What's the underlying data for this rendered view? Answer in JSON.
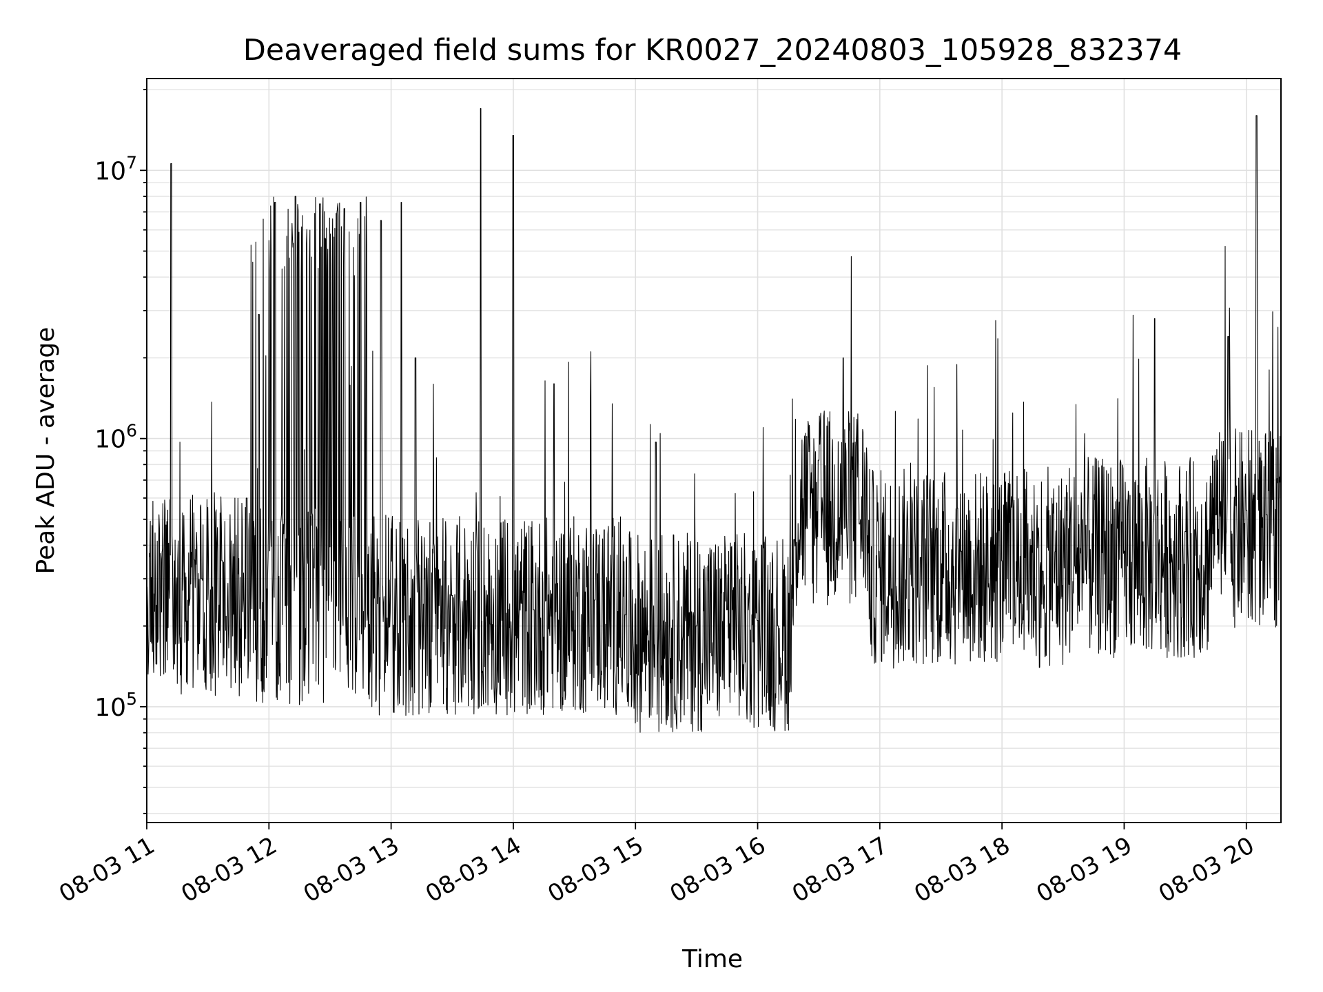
{
  "chart_data": {
    "type": "line",
    "title": "Deaveraged field sums for KR0027_20240803_105928_832374",
    "xlabel": "Time",
    "ylabel": "Peak ADU - average",
    "yscale": "log",
    "ylim": [
      37000,
      22000000
    ],
    "xlim": [
      "2024-08-03T11:00",
      "2024-08-03T20:17"
    ],
    "grid": true,
    "x_ticks": [
      {
        "value": "2024-08-03T11:00",
        "label": "08-03 11"
      },
      {
        "value": "2024-08-03T12:00",
        "label": "08-03 12"
      },
      {
        "value": "2024-08-03T13:00",
        "label": "08-03 13"
      },
      {
        "value": "2024-08-03T14:00",
        "label": "08-03 14"
      },
      {
        "value": "2024-08-03T15:00",
        "label": "08-03 15"
      },
      {
        "value": "2024-08-03T16:00",
        "label": "08-03 16"
      },
      {
        "value": "2024-08-03T17:00",
        "label": "08-03 17"
      },
      {
        "value": "2024-08-03T18:00",
        "label": "08-03 18"
      },
      {
        "value": "2024-08-03T19:00",
        "label": "08-03 19"
      },
      {
        "value": "2024-08-03T20:00",
        "label": "08-03 20"
      }
    ],
    "y_ticks": [
      {
        "value": 100000,
        "base": "10",
        "exp": "5"
      },
      {
        "value": 1000000,
        "base": "10",
        "exp": "6"
      },
      {
        "value": 10000000,
        "base": "10",
        "exp": "7"
      }
    ],
    "series": [
      {
        "color": "#000000",
        "x": [
          "2024-08-03T11:00",
          "2024-08-03T11:12",
          "2024-08-03T11:27",
          "2024-08-03T11:37",
          "2024-08-03T11:49",
          "2024-08-03T11:55",
          "2024-08-03T12:03",
          "2024-08-03T12:13",
          "2024-08-03T12:25",
          "2024-08-03T12:37",
          "2024-08-03T12:45",
          "2024-08-03T12:55",
          "2024-08-03T13:05",
          "2024-08-03T13:12",
          "2024-08-03T13:24",
          "2024-08-03T13:30",
          "2024-08-03T13:44",
          "2024-08-03T14:00",
          "2024-08-03T14:10",
          "2024-08-03T14:20",
          "2024-08-03T14:40",
          "2024-08-03T14:55",
          "2024-08-03T15:10",
          "2024-08-03T15:30",
          "2024-08-03T15:45",
          "2024-08-03T16:00",
          "2024-08-03T16:10",
          "2024-08-03T16:18",
          "2024-08-03T16:30",
          "2024-08-03T16:42",
          "2024-08-03T16:50",
          "2024-08-03T17:00",
          "2024-08-03T17:20",
          "2024-08-03T17:40",
          "2024-08-03T18:00",
          "2024-08-03T18:20",
          "2024-08-03T18:40",
          "2024-08-03T19:00",
          "2024-08-03T19:15",
          "2024-08-03T19:30",
          "2024-08-03T19:45",
          "2024-08-03T19:51",
          "2024-08-03T20:00",
          "2024-08-03T20:05",
          "2024-08-03T20:10",
          "2024-08-03T20:17"
        ],
        "values": [
          280000,
          10600000,
          300000,
          350000,
          600000,
          2900000,
          7600000,
          8000000,
          7500000,
          7200000,
          7600000,
          6500000,
          7600000,
          2000000,
          300000,
          260000,
          17000000,
          13500000,
          230000,
          1600000,
          250000,
          220000,
          970000,
          200000,
          230000,
          210000,
          200000,
          420000,
          830000,
          2000000,
          480000,
          330000,
          360000,
          380000,
          350000,
          320000,
          290000,
          380000,
          2800000,
          450000,
          520000,
          2400000,
          540000,
          16000000,
          520000,
          600000
        ]
      }
    ]
  }
}
